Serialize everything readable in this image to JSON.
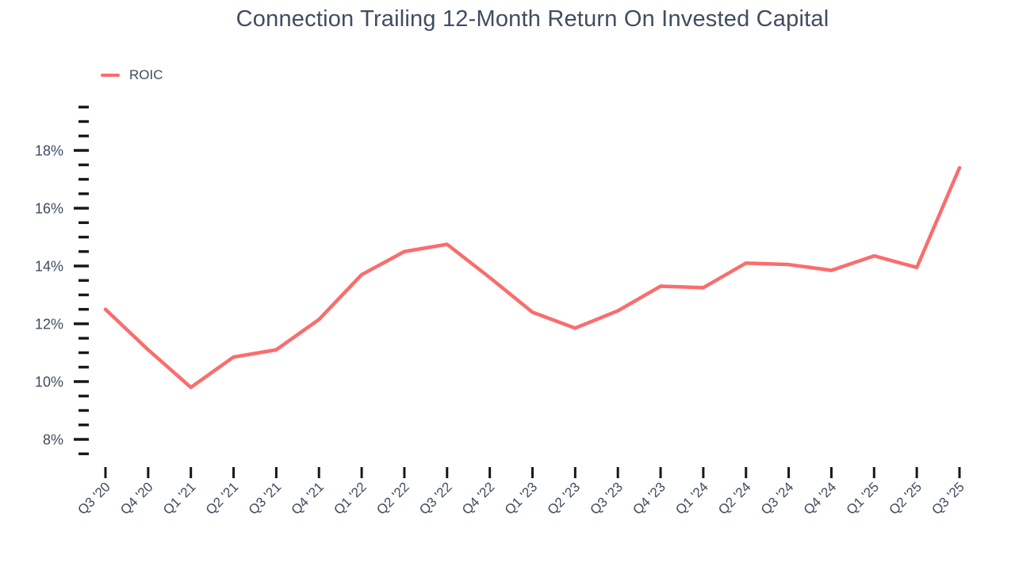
{
  "page": {
    "background": "#ffffff"
  },
  "chart_data": {
    "type": "line",
    "title": "Connection Trailing 12-Month Return On Invested Capital",
    "legend_position": "top-left",
    "grid": false,
    "colors": {
      "series": "#FA6D6D",
      "text": "#3E4B5E",
      "tick": "#15181C"
    },
    "x": {
      "categories": [
        "Q3 '20",
        "Q4 '20",
        "Q1 '21",
        "Q2 '21",
        "Q3 '21",
        "Q4 '21",
        "Q1 '22",
        "Q2 '22",
        "Q3 '22",
        "Q4 '22",
        "Q1 '23",
        "Q2 '23",
        "Q3 '23",
        "Q4 '23",
        "Q1 '24",
        "Q2 '24",
        "Q3 '24",
        "Q4 '24",
        "Q1 '25",
        "Q2 '25",
        "Q3 '25"
      ]
    },
    "y_axis": {
      "range": [
        7.5,
        19.5
      ],
      "minor_step": 0.5,
      "unit": "%",
      "major_ticks": [
        {
          "value": 8,
          "label": "8%"
        },
        {
          "value": 10,
          "label": "10%"
        },
        {
          "value": 12,
          "label": "12%"
        },
        {
          "value": 14,
          "label": "14%"
        },
        {
          "value": 16,
          "label": "16%"
        },
        {
          "value": 18,
          "label": "18%"
        }
      ]
    },
    "series": [
      {
        "name": "ROIC",
        "values": [
          12.5,
          11.1,
          9.8,
          10.85,
          11.1,
          12.15,
          13.7,
          14.5,
          14.75,
          13.6,
          12.4,
          11.85,
          12.45,
          13.3,
          13.25,
          14.1,
          14.05,
          13.85,
          14.35,
          13.95,
          17.4
        ]
      }
    ]
  }
}
